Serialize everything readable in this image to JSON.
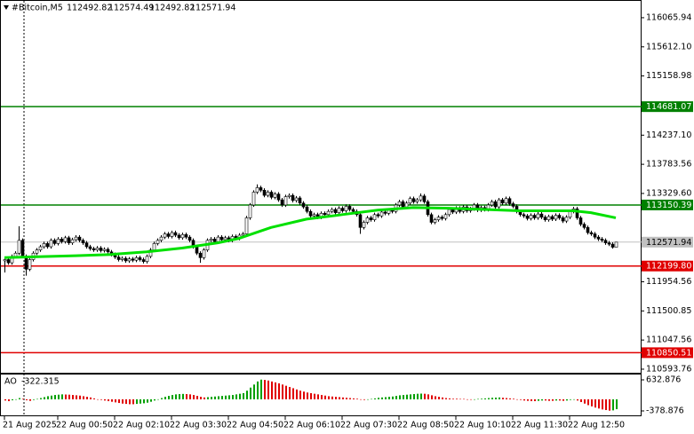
{
  "chart_data": {
    "type": "candlestick",
    "title": "#Bitcoin,M5",
    "up_color": "#ffffff",
    "down_color": "#000000",
    "candles": [
      [
        112280,
        112330,
        112100,
        112300
      ],
      [
        112300,
        112330,
        112220,
        112250
      ],
      [
        112250,
        112380,
        112220,
        112350
      ],
      [
        112350,
        112430,
        112320,
        112400
      ],
      [
        112400,
        112820,
        112370,
        112600
      ],
      [
        112600,
        112630,
        112320,
        112350
      ],
      [
        112350,
        112380,
        112050,
        112150
      ],
      [
        112150,
        112330,
        112120,
        112300
      ],
      [
        112300,
        112430,
        112270,
        112400
      ],
      [
        112400,
        112480,
        112370,
        112450
      ],
      [
        112450,
        112530,
        112420,
        112500
      ],
      [
        112500,
        112580,
        112470,
        112550
      ],
      [
        112550,
        112580,
        112470,
        112500
      ],
      [
        112500,
        112630,
        112470,
        112600
      ],
      [
        112600,
        112630,
        112520,
        112550
      ],
      [
        112550,
        112650,
        112520,
        112620
      ],
      [
        112620,
        112650,
        112550,
        112580
      ],
      [
        112580,
        112670,
        112550,
        112640
      ],
      [
        112640,
        112670,
        112530,
        112560
      ],
      [
        112560,
        112640,
        112530,
        112610
      ],
      [
        112610,
        112680,
        112580,
        112650
      ],
      [
        112650,
        112680,
        112570,
        112600
      ],
      [
        112600,
        112630,
        112530,
        112560
      ],
      [
        112560,
        112590,
        112470,
        112500
      ],
      [
        112500,
        112530,
        112440,
        112470
      ],
      [
        112470,
        112500,
        112420,
        112450
      ],
      [
        112450,
        112510,
        112420,
        112480
      ],
      [
        112480,
        112510,
        112410,
        112440
      ],
      [
        112440,
        112490,
        112410,
        112460
      ],
      [
        112460,
        112490,
        112390,
        112420
      ],
      [
        112420,
        112450,
        112350,
        112380
      ],
      [
        112380,
        112410,
        112310,
        112340
      ],
      [
        112340,
        112370,
        112270,
        112300
      ],
      [
        112300,
        112350,
        112270,
        112320
      ],
      [
        112320,
        112350,
        112250,
        112280
      ],
      [
        112280,
        112340,
        112250,
        112310
      ],
      [
        112310,
        112340,
        112260,
        112290
      ],
      [
        112290,
        112360,
        112260,
        112330
      ],
      [
        112330,
        112360,
        112270,
        112300
      ],
      [
        112300,
        112330,
        112240,
        112270
      ],
      [
        112270,
        112380,
        112240,
        112350
      ],
      [
        112350,
        112480,
        112320,
        112450
      ],
      [
        112450,
        112580,
        112420,
        112550
      ],
      [
        112550,
        112630,
        112520,
        112600
      ],
      [
        112600,
        112680,
        112570,
        112650
      ],
      [
        112650,
        112730,
        112620,
        112700
      ],
      [
        112700,
        112730,
        112630,
        112660
      ],
      [
        112660,
        112750,
        112630,
        112720
      ],
      [
        112720,
        112750,
        112650,
        112680
      ],
      [
        112680,
        112710,
        112610,
        112640
      ],
      [
        112640,
        112720,
        112610,
        112690
      ],
      [
        112690,
        112720,
        112620,
        112650
      ],
      [
        112650,
        112680,
        112570,
        112600
      ],
      [
        112600,
        112630,
        112470,
        112500
      ],
      [
        112500,
        112530,
        112370,
        112400
      ],
      [
        112400,
        112430,
        112250,
        112330
      ],
      [
        112330,
        112480,
        112300,
        112450
      ],
      [
        112450,
        112630,
        112420,
        112600
      ],
      [
        112600,
        112650,
        112570,
        112620
      ],
      [
        112620,
        112650,
        112550,
        112580
      ],
      [
        112580,
        112680,
        112550,
        112650
      ],
      [
        112650,
        112680,
        112580,
        112610
      ],
      [
        112610,
        112670,
        112580,
        112640
      ],
      [
        112640,
        112670,
        112570,
        112600
      ],
      [
        112600,
        112690,
        112570,
        112660
      ],
      [
        112660,
        112690,
        112600,
        112630
      ],
      [
        112630,
        112710,
        112600,
        112680
      ],
      [
        112680,
        112730,
        112650,
        112700
      ],
      [
        112700,
        112980,
        112670,
        112950
      ],
      [
        112950,
        113180,
        112920,
        113150
      ],
      [
        113150,
        113380,
        113120,
        113350
      ],
      [
        113350,
        113470,
        113320,
        113420
      ],
      [
        113420,
        113450,
        113350,
        113380
      ],
      [
        113380,
        113410,
        113270,
        113300
      ],
      [
        113300,
        113380,
        113270,
        113350
      ],
      [
        113350,
        113380,
        113240,
        113270
      ],
      [
        113270,
        113350,
        113240,
        113320
      ],
      [
        113320,
        113350,
        113200,
        113230
      ],
      [
        113230,
        113260,
        113120,
        113150
      ],
      [
        113150,
        113310,
        113120,
        113280
      ],
      [
        113280,
        113330,
        113250,
        113300
      ],
      [
        113300,
        113330,
        113190,
        113220
      ],
      [
        113220,
        113290,
        113190,
        113260
      ],
      [
        113260,
        113290,
        113150,
        113180
      ],
      [
        113180,
        113210,
        113090,
        113120
      ],
      [
        113120,
        113150,
        113020,
        113050
      ],
      [
        113050,
        113080,
        112950,
        112980
      ],
      [
        112980,
        113030,
        112950,
        113000
      ],
      [
        113000,
        113030,
        112930,
        112960
      ],
      [
        112960,
        113050,
        112930,
        113020
      ],
      [
        113020,
        113050,
        112970,
        113000
      ],
      [
        113000,
        113080,
        112970,
        113050
      ],
      [
        113050,
        113110,
        113020,
        113080
      ],
      [
        113080,
        113110,
        113000,
        113030
      ],
      [
        113030,
        113130,
        113000,
        113100
      ],
      [
        113100,
        113130,
        113030,
        113060
      ],
      [
        113060,
        113160,
        113030,
        113130
      ],
      [
        113130,
        113160,
        113050,
        113080
      ],
      [
        113080,
        113110,
        113020,
        113050
      ],
      [
        113050,
        113080,
        112970,
        113000
      ],
      [
        113000,
        113030,
        112700,
        112800
      ],
      [
        112800,
        112910,
        112770,
        112880
      ],
      [
        112880,
        112980,
        112850,
        112950
      ],
      [
        112950,
        112980,
        112890,
        112920
      ],
      [
        112920,
        113030,
        112890,
        113000
      ],
      [
        113000,
        113030,
        112950,
        112980
      ],
      [
        112980,
        113070,
        112950,
        113040
      ],
      [
        113040,
        113070,
        112990,
        113020
      ],
      [
        113020,
        113100,
        112990,
        113070
      ],
      [
        113070,
        113100,
        113020,
        113050
      ],
      [
        113050,
        113180,
        113020,
        113150
      ],
      [
        113150,
        113230,
        113120,
        113200
      ],
      [
        113200,
        113230,
        113090,
        113120
      ],
      [
        113120,
        113210,
        113090,
        113180
      ],
      [
        113180,
        113280,
        113150,
        113250
      ],
      [
        113250,
        113280,
        113170,
        113200
      ],
      [
        113200,
        113260,
        113170,
        113230
      ],
      [
        113230,
        113330,
        113200,
        113290
      ],
      [
        113290,
        113320,
        113170,
        113200
      ],
      [
        113200,
        113230,
        112970,
        113000
      ],
      [
        113000,
        113030,
        112850,
        112880
      ],
      [
        112880,
        112950,
        112850,
        112920
      ],
      [
        112920,
        112990,
        112890,
        112960
      ],
      [
        112960,
        112990,
        112910,
        112940
      ],
      [
        112940,
        113030,
        112910,
        113000
      ],
      [
        113000,
        113110,
        112970,
        113080
      ],
      [
        113080,
        113110,
        113010,
        113040
      ],
      [
        113040,
        113130,
        113010,
        113100
      ],
      [
        113100,
        113130,
        113020,
        113050
      ],
      [
        113050,
        113150,
        113020,
        113120
      ],
      [
        113120,
        113150,
        113030,
        113060
      ],
      [
        113060,
        113120,
        113030,
        113090
      ],
      [
        113090,
        113180,
        113060,
        113150
      ],
      [
        113150,
        113180,
        113040,
        113070
      ],
      [
        113070,
        113140,
        113040,
        113110
      ],
      [
        113110,
        113140,
        113050,
        113080
      ],
      [
        113080,
        113180,
        113050,
        113150
      ],
      [
        113150,
        113230,
        113120,
        113200
      ],
      [
        113200,
        113230,
        113090,
        113120
      ],
      [
        113120,
        113260,
        113090,
        113230
      ],
      [
        113230,
        113260,
        113150,
        113180
      ],
      [
        113180,
        113280,
        113150,
        113250
      ],
      [
        113250,
        113280,
        113140,
        113170
      ],
      [
        113170,
        113200,
        113100,
        113130
      ],
      [
        113130,
        113160,
        113020,
        113050
      ],
      [
        113050,
        113080,
        112970,
        113000
      ],
      [
        113000,
        113030,
        112950,
        112980
      ],
      [
        112980,
        113010,
        112910,
        112940
      ],
      [
        112940,
        113020,
        112910,
        112990
      ],
      [
        112990,
        113020,
        112920,
        112950
      ],
      [
        112950,
        113040,
        112920,
        113010
      ],
      [
        113010,
        113040,
        112930,
        112960
      ],
      [
        112960,
        112990,
        112890,
        112920
      ],
      [
        112920,
        113000,
        112890,
        112970
      ],
      [
        112970,
        113000,
        112900,
        112930
      ],
      [
        112930,
        113020,
        112900,
        112990
      ],
      [
        112990,
        113020,
        112920,
        112950
      ],
      [
        112950,
        112980,
        112870,
        112900
      ],
      [
        112900,
        112990,
        112870,
        112960
      ],
      [
        112960,
        113080,
        112930,
        113050
      ],
      [
        113050,
        113120,
        113020,
        113090
      ],
      [
        113090,
        113120,
        112920,
        112950
      ],
      [
        112950,
        112980,
        112820,
        112850
      ],
      [
        112850,
        112880,
        112770,
        112800
      ],
      [
        112800,
        112830,
        112690,
        112720
      ],
      [
        112720,
        112750,
        112670,
        112700
      ],
      [
        112700,
        112730,
        112620,
        112650
      ],
      [
        112650,
        112680,
        112590,
        112620
      ],
      [
        112620,
        112650,
        112570,
        112600
      ],
      [
        112600,
        112630,
        112530,
        112560
      ],
      [
        112560,
        112590,
        112510,
        112540
      ],
      [
        112540,
        112570,
        112470,
        112492.82
      ],
      [
        112492.82,
        112574.49,
        112492.82,
        112571.94
      ]
    ],
    "ma": {
      "color": "#00e000",
      "x": [
        0,
        20,
        30,
        40,
        50,
        60,
        66,
        75,
        85,
        95,
        105,
        115,
        125,
        135,
        145,
        155,
        160,
        165,
        172
      ],
      "values": [
        112330,
        112360,
        112380,
        112420,
        112480,
        112560,
        112630,
        112800,
        112930,
        113000,
        113070,
        113110,
        113100,
        113080,
        113060,
        113060,
        113060,
        113030,
        112950
      ]
    },
    "levels": [
      {
        "value": 114681.07,
        "color": "#008000"
      },
      {
        "value": 113150.39,
        "color": "#008000"
      },
      {
        "value": 112199.8,
        "label": "112199.80",
        "color": "#e00000"
      },
      {
        "value": 110850.51,
        "color": "#e00000"
      }
    ],
    "ylim": [
      110538,
      116300
    ],
    "yticks": [
      116065.94,
      {
        "value": 115612.1,
        "label": "115612.10"
      },
      115158.98,
      {
        "value": 114237.1,
        "label": "114237.10"
      },
      113783.56,
      {
        "value": 113329.6,
        "label": "113329.60"
      },
      111954.56,
      111500.85,
      111047.56,
      110593.76
    ],
    "xticks": [
      {
        "value": 0,
        "label": "21 Aug 2025"
      },
      {
        "value": 15,
        "label": "22 Aug 00:50"
      },
      {
        "value": 31,
        "label": "22 Aug 02:10"
      },
      {
        "value": 47,
        "label": "22 Aug 03:30"
      },
      {
        "value": 63,
        "label": "22 Aug 04:50"
      },
      {
        "value": 79,
        "label": "22 Aug 06:10"
      },
      {
        "value": 95,
        "label": "22 Aug 07:30"
      },
      {
        "value": 111,
        "label": "22 Aug 08:50"
      },
      {
        "value": 127,
        "label": "22 Aug 10:10"
      },
      {
        "value": 143,
        "label": "22 Aug 11:30"
      },
      {
        "value": 159,
        "label": "22 Aug 12:50"
      }
    ],
    "indicator": {
      "name": "AO",
      "up_color": "#00a000",
      "down_color": "#e00000",
      "ylim": [
        -552,
        806
      ],
      "yticks": [
        632.876,
        -378.876
      ],
      "values": [
        -40,
        -60,
        -30,
        0,
        40,
        20,
        -30,
        -50,
        -20,
        10,
        40,
        70,
        100,
        120,
        140,
        150,
        160,
        155,
        150,
        140,
        130,
        120,
        100,
        80,
        60,
        30,
        0,
        -20,
        -40,
        -60,
        -80,
        -100,
        -120,
        -140,
        -150,
        -160,
        -160,
        -150,
        -140,
        -130,
        -110,
        -80,
        -40,
        0,
        40,
        80,
        110,
        140,
        160,
        170,
        175,
        170,
        160,
        140,
        110,
        80,
        60,
        70,
        80,
        90,
        100,
        110,
        120,
        130,
        140,
        160,
        180,
        200,
        280,
        380,
        480,
        580,
        640,
        630,
        610,
        580,
        550,
        520,
        480,
        440,
        400,
        360,
        320,
        280,
        250,
        220,
        200,
        180,
        160,
        140,
        120,
        100,
        90,
        80,
        70,
        60,
        50,
        40,
        30,
        20,
        0,
        -20,
        -10,
        10,
        30,
        50,
        60,
        70,
        80,
        90,
        110,
        130,
        140,
        150,
        160,
        170,
        180,
        185,
        180,
        160,
        130,
        100,
        80,
        60,
        40,
        30,
        20,
        20,
        10,
        10,
        0,
        -10,
        0,
        10,
        20,
        30,
        40,
        50,
        55,
        60,
        50,
        40,
        30,
        20,
        0,
        -20,
        -40,
        -50,
        -60,
        -60,
        -50,
        -40,
        -40,
        -50,
        -50,
        -40,
        -40,
        -50,
        -40,
        -20,
        0,
        -40,
        -90,
        -140,
        -190,
        -230,
        -270,
        -300,
        -330,
        -350,
        -370,
        -360,
        -322.315
      ]
    }
  }
}
